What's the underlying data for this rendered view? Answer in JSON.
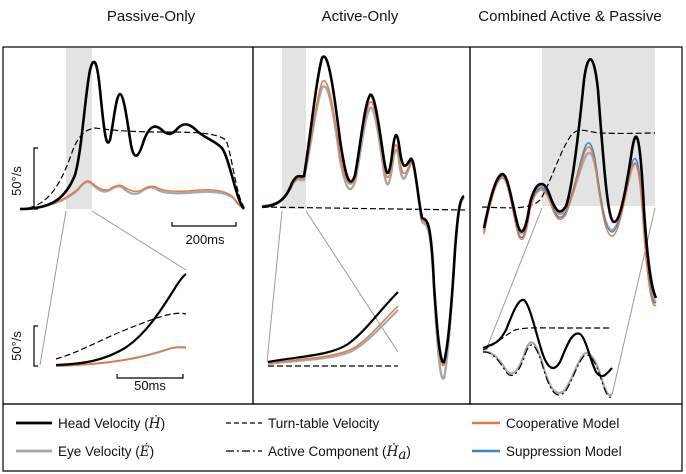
{
  "colors": {
    "head": "#000000",
    "eye": "#a8a8a8",
    "turntable": "#000000",
    "active": "#000000",
    "cooperative": "#e07848",
    "suppression": "#3a86c8",
    "shade": "#e3e3e3"
  },
  "chart_data": [
    {
      "type": "line",
      "title": "Passive-Only",
      "xlabel": "",
      "ylabel": "",
      "scale_bars": {
        "velocity": "50°/s",
        "time": "200ms"
      },
      "series": [
        {
          "name": "Head Velocity (Ḣ)",
          "trace": "head_velocity"
        },
        {
          "name": "Turn-table Velocity",
          "trace": "turntable_velocity"
        },
        {
          "name": "Eye Velocity (Ė)",
          "trace": "eye_velocity"
        },
        {
          "name": "Cooperative Model",
          "trace": "cooperative_model"
        }
      ],
      "inset": {
        "scale_bars": {
          "velocity": "50°/s",
          "time": "50ms"
        },
        "series": [
          "Head Velocity (Ḣ)",
          "Turn-table Velocity",
          "Eye Velocity (Ė)",
          "Cooperative Model"
        ]
      }
    },
    {
      "type": "line",
      "title": "Active-Only",
      "xlabel": "",
      "ylabel": "",
      "series": [
        {
          "name": "Head Velocity (Ḣ)",
          "trace": "head_velocity"
        },
        {
          "name": "Turn-table Velocity",
          "trace": "turntable_velocity"
        },
        {
          "name": "Eye Velocity (Ė)",
          "trace": "eye_velocity"
        },
        {
          "name": "Cooperative Model",
          "trace": "cooperative_model"
        }
      ],
      "inset": {
        "series": [
          "Head Velocity (Ḣ)",
          "Turn-table Velocity",
          "Eye Velocity (Ė)",
          "Cooperative Model"
        ]
      }
    },
    {
      "type": "line",
      "title": "Combined Active & Passive",
      "xlabel": "",
      "ylabel": "",
      "series": [
        {
          "name": "Head Velocity (Ḣ)",
          "trace": "head_velocity"
        },
        {
          "name": "Turn-table Velocity",
          "trace": "turntable_velocity"
        },
        {
          "name": "Eye Velocity (Ė)",
          "trace": "eye_velocity"
        },
        {
          "name": "Cooperative Model",
          "trace": "cooperative_model"
        },
        {
          "name": "Suppression Model",
          "trace": "suppression_model"
        }
      ],
      "inset": {
        "series": [
          "Head Velocity (Ḣ)",
          "Turn-table Velocity",
          "Eye Velocity (Ė)",
          "Active Component (Ḣa)"
        ]
      }
    }
  ],
  "legend": {
    "head": {
      "text": "Head Velocity (",
      "sym": "Ḣ",
      "close": ")"
    },
    "eye": {
      "text": "Eye Velocity (",
      "sym": "Ė",
      "close": ")"
    },
    "turntable": {
      "text": "Turn-table Velocity"
    },
    "active": {
      "text": "Active Component (",
      "sym": "Ḣ",
      "sub": "a",
      "close": ")"
    },
    "cooperative": {
      "text": "Cooperative Model"
    },
    "suppression": {
      "text": "Suppression Model"
    }
  }
}
